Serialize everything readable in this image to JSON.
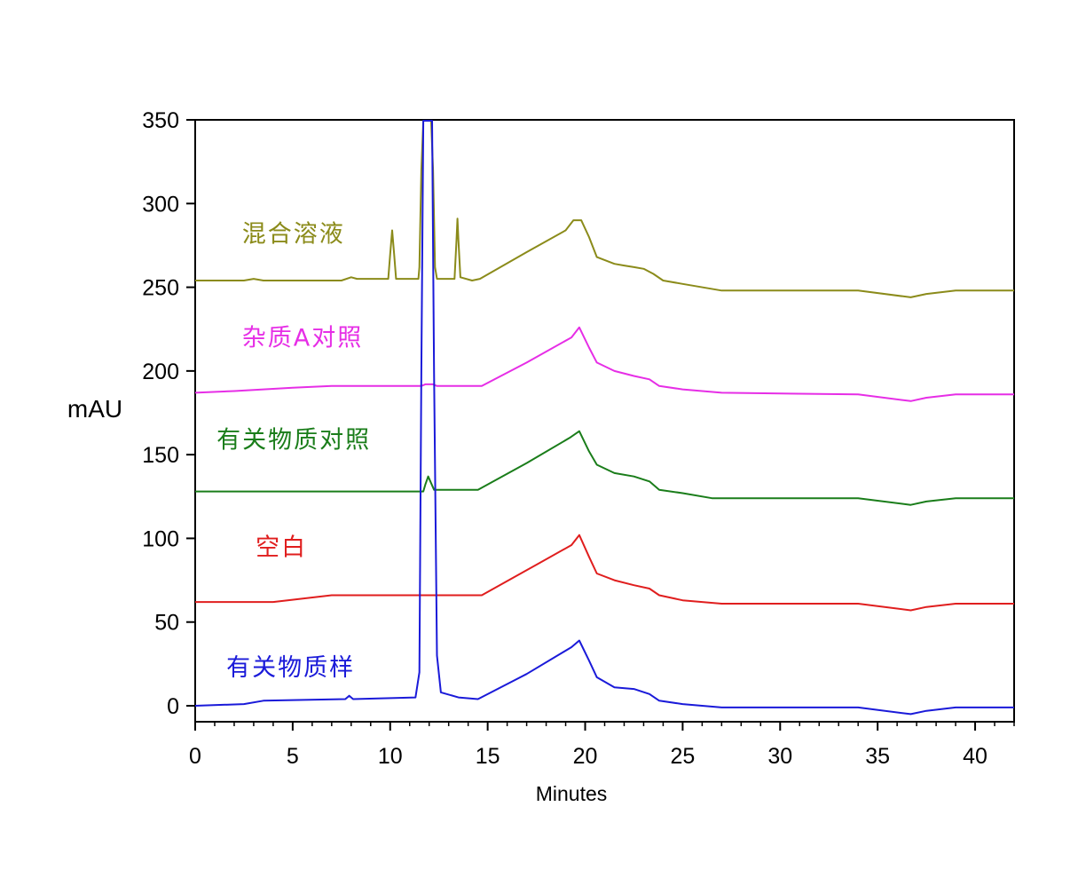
{
  "chart_data": {
    "type": "line",
    "xlabel": "Minutes",
    "ylabel": "mAU",
    "xlim": [
      0,
      42
    ],
    "ylim": [
      -10,
      350
    ],
    "xticks": [
      0,
      5,
      10,
      15,
      20,
      25,
      30,
      35,
      40
    ],
    "yticks": [
      0,
      50,
      100,
      150,
      200,
      250,
      300,
      350
    ],
    "grid": false,
    "legend": "inline labels on left",
    "series": [
      {
        "name": "混合溶液",
        "color": "#8b8b1a",
        "label_at": [
          2.4,
          277
        ],
        "points": [
          [
            0,
            254
          ],
          [
            2.5,
            254
          ],
          [
            3,
            255
          ],
          [
            3.5,
            254
          ],
          [
            7.5,
            254
          ],
          [
            8,
            256
          ],
          [
            8.3,
            255
          ],
          [
            9.9,
            255
          ],
          [
            10.0,
            270
          ],
          [
            10.1,
            284
          ],
          [
            10.2,
            270
          ],
          [
            10.3,
            255
          ],
          [
            11.45,
            255
          ],
          [
            11.5,
            262
          ],
          [
            11.6,
            320
          ],
          [
            11.7,
            350
          ],
          [
            12.1,
            350
          ],
          [
            12.2,
            320
          ],
          [
            12.3,
            262
          ],
          [
            12.4,
            255
          ],
          [
            13.3,
            255
          ],
          [
            13.4,
            278
          ],
          [
            13.45,
            291
          ],
          [
            13.5,
            278
          ],
          [
            13.6,
            256
          ],
          [
            14.2,
            254
          ],
          [
            14.6,
            255
          ],
          [
            17,
            271
          ],
          [
            19,
            284
          ],
          [
            19.4,
            290
          ],
          [
            19.8,
            290
          ],
          [
            20.2,
            280
          ],
          [
            20.6,
            268
          ],
          [
            21.5,
            264
          ],
          [
            22,
            263
          ],
          [
            22.5,
            262
          ],
          [
            23,
            261
          ],
          [
            23.5,
            258
          ],
          [
            24,
            254
          ],
          [
            25,
            252
          ],
          [
            27,
            248
          ],
          [
            34,
            248
          ],
          [
            36.7,
            244
          ],
          [
            37.5,
            246
          ],
          [
            39,
            248
          ],
          [
            42,
            248
          ]
        ]
      },
      {
        "name": "杂质A对照",
        "color": "#e62ee6",
        "label_at": [
          2.4,
          215
        ],
        "points": [
          [
            0,
            187
          ],
          [
            2,
            188
          ],
          [
            5,
            190
          ],
          [
            7,
            191
          ],
          [
            11.6,
            191
          ],
          [
            11.8,
            192
          ],
          [
            12.2,
            192
          ],
          [
            12.4,
            191
          ],
          [
            14.7,
            191
          ],
          [
            17,
            205
          ],
          [
            19.3,
            220
          ],
          [
            19.7,
            226
          ],
          [
            20.2,
            214
          ],
          [
            20.6,
            205
          ],
          [
            21.5,
            200
          ],
          [
            22.5,
            197
          ],
          [
            23.3,
            195
          ],
          [
            23.8,
            191
          ],
          [
            25,
            189
          ],
          [
            27,
            187
          ],
          [
            34,
            186
          ],
          [
            36.7,
            182
          ],
          [
            37.5,
            184
          ],
          [
            39,
            186
          ],
          [
            42,
            186
          ]
        ]
      },
      {
        "name": "有关物质对照",
        "color": "#1a7d1a",
        "label_at": [
          1.1,
          154
        ],
        "points": [
          [
            0,
            128
          ],
          [
            11.7,
            128
          ],
          [
            11.8,
            132
          ],
          [
            11.95,
            137
          ],
          [
            12.1,
            133
          ],
          [
            12.25,
            129
          ],
          [
            14.5,
            129
          ],
          [
            17,
            145
          ],
          [
            19.2,
            160
          ],
          [
            19.7,
            164
          ],
          [
            20.2,
            152
          ],
          [
            20.6,
            144
          ],
          [
            21.5,
            139
          ],
          [
            22.5,
            137
          ],
          [
            23.3,
            134
          ],
          [
            23.8,
            129
          ],
          [
            25,
            127
          ],
          [
            26.5,
            124
          ],
          [
            34,
            124
          ],
          [
            36.7,
            120
          ],
          [
            37.5,
            122
          ],
          [
            39,
            124
          ],
          [
            42,
            124
          ]
        ]
      },
      {
        "name": "空白",
        "color": "#e01e1e",
        "label_at": [
          3.1,
          90
        ],
        "points": [
          [
            0,
            62
          ],
          [
            4,
            62
          ],
          [
            7,
            66
          ],
          [
            14.7,
            66
          ],
          [
            17,
            81
          ],
          [
            19.3,
            96
          ],
          [
            19.7,
            102
          ],
          [
            20.2,
            89
          ],
          [
            20.6,
            79
          ],
          [
            21.5,
            75
          ],
          [
            22.5,
            72
          ],
          [
            23.3,
            70
          ],
          [
            23.8,
            66
          ],
          [
            25,
            63
          ],
          [
            27,
            61
          ],
          [
            34,
            61
          ],
          [
            36.7,
            57
          ],
          [
            37.5,
            59
          ],
          [
            39,
            61
          ],
          [
            42,
            61
          ]
        ]
      },
      {
        "name": "有关物质样",
        "color": "#1a1ad9",
        "label_at": [
          1.6,
          18
        ],
        "points": [
          [
            0,
            0
          ],
          [
            2.5,
            1
          ],
          [
            3.5,
            3
          ],
          [
            7.7,
            4
          ],
          [
            7.9,
            6
          ],
          [
            8.1,
            4
          ],
          [
            11.3,
            5
          ],
          [
            11.5,
            20
          ],
          [
            11.6,
            200
          ],
          [
            11.7,
            350
          ],
          [
            12.15,
            350
          ],
          [
            12.25,
            200
          ],
          [
            12.4,
            30
          ],
          [
            12.6,
            8
          ],
          [
            13.5,
            5
          ],
          [
            14.5,
            4
          ],
          [
            17,
            19
          ],
          [
            19.3,
            35
          ],
          [
            19.7,
            39
          ],
          [
            20.2,
            27
          ],
          [
            20.6,
            17
          ],
          [
            21.5,
            11
          ],
          [
            22.5,
            10
          ],
          [
            23.3,
            7
          ],
          [
            23.8,
            3
          ],
          [
            25,
            1
          ],
          [
            27,
            -1
          ],
          [
            34,
            -1
          ],
          [
            36.7,
            -5
          ],
          [
            37.5,
            -3
          ],
          [
            39,
            -1
          ],
          [
            42,
            -1
          ]
        ]
      }
    ]
  }
}
